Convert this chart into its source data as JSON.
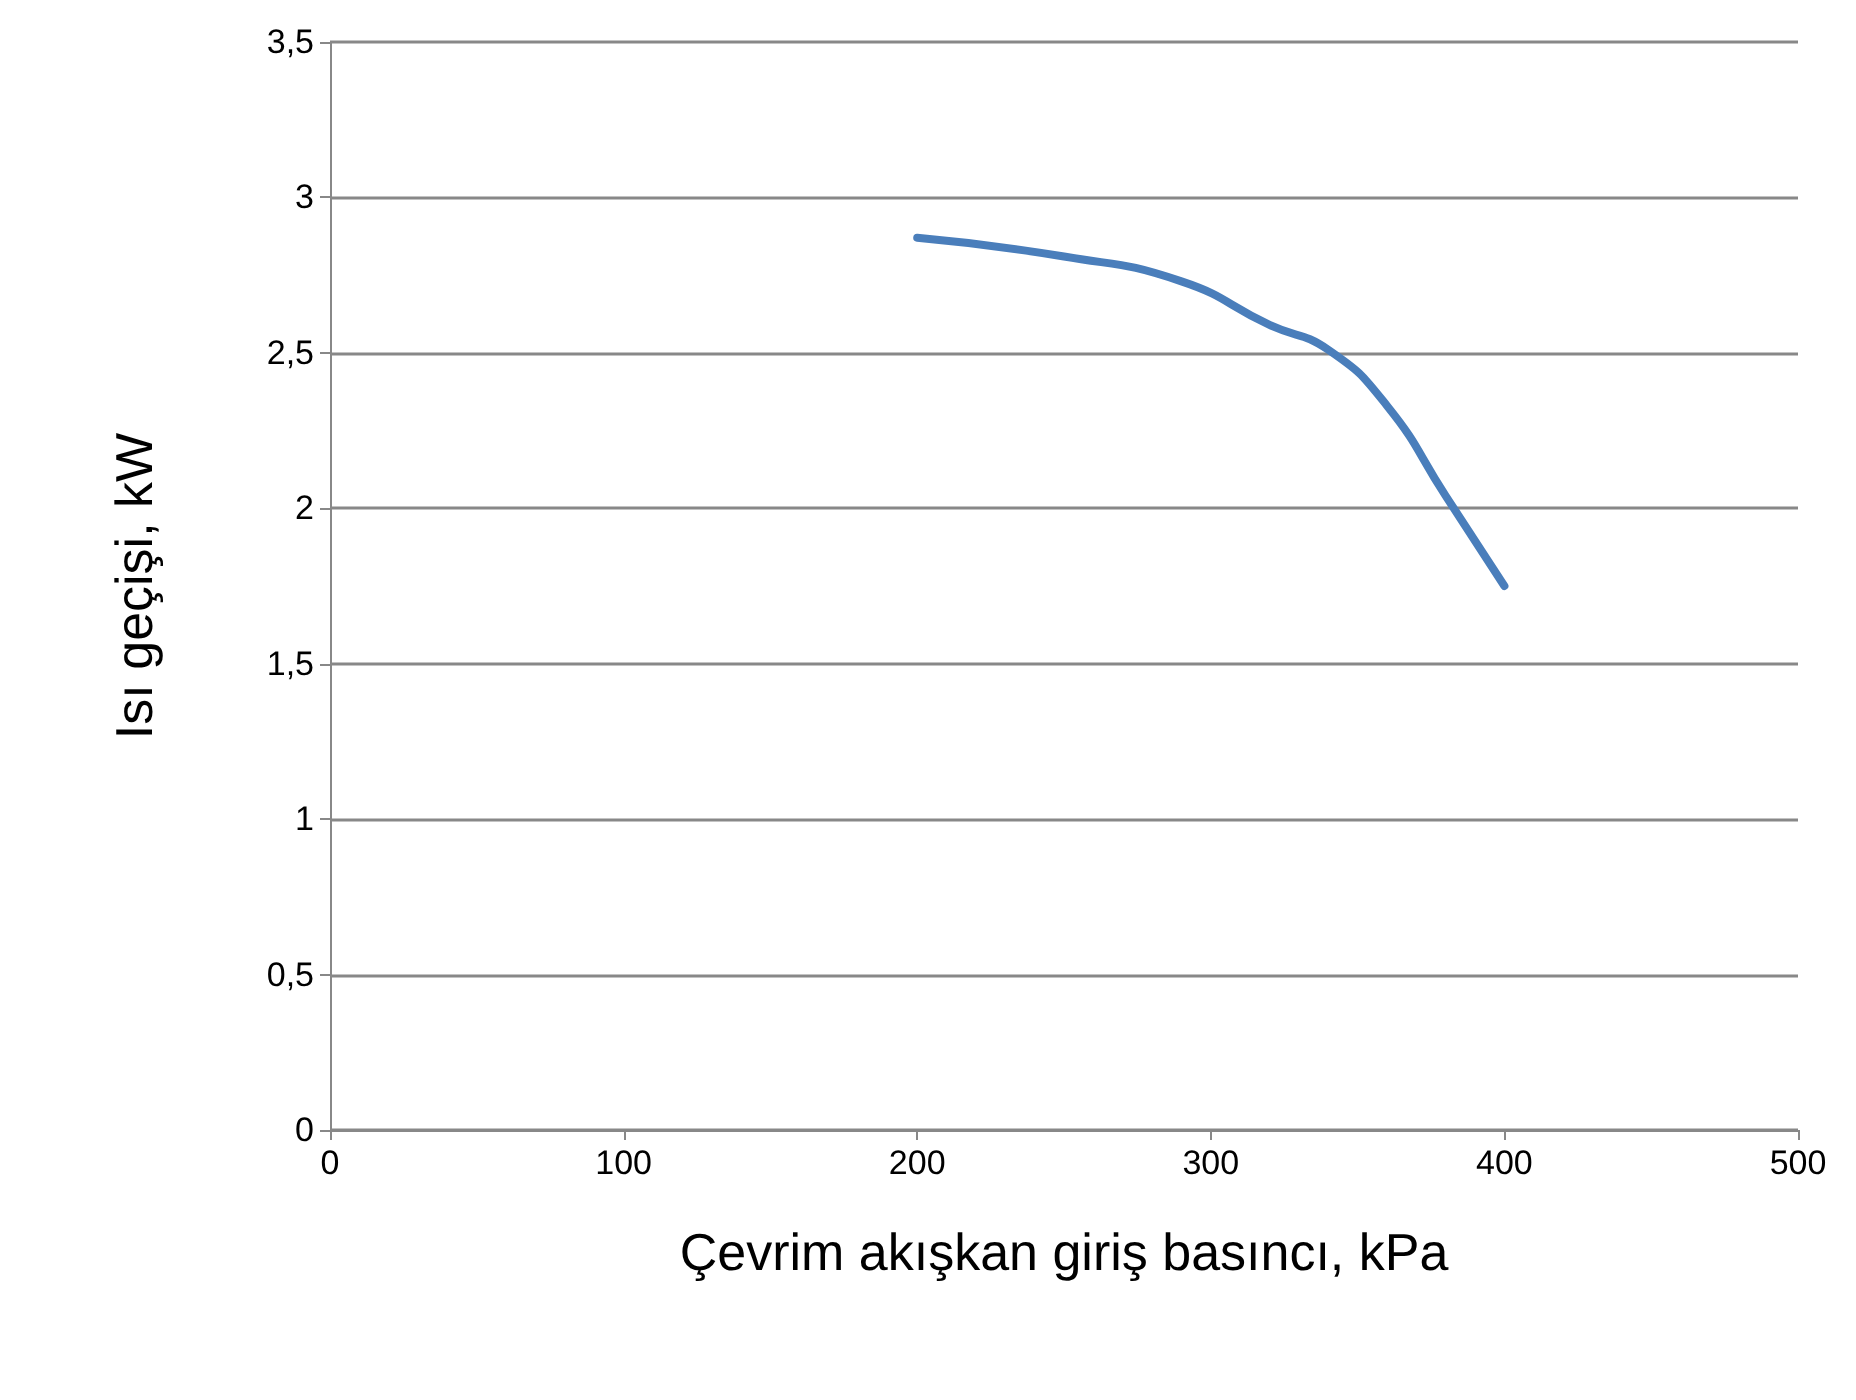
{
  "chart_data": {
    "type": "line",
    "xlabel": "Çevrim akışkan giriş basıncı, kPa",
    "ylabel": "Isı geçişi, kW",
    "x": [
      200,
      250,
      290,
      320,
      340,
      360,
      380,
      400
    ],
    "series": [
      {
        "color": "#4a7ebb",
        "values": [
          2.87,
          2.81,
          2.73,
          2.59,
          2.51,
          2.33,
          2.04,
          1.75
        ]
      }
    ],
    "xlim": [
      0,
      500
    ],
    "xticks": [
      0,
      100,
      200,
      300,
      400,
      500
    ],
    "ylim": [
      0,
      3.5
    ],
    "yticks": [
      0,
      {
        "value": 0.5,
        "label": "0,5"
      },
      1,
      {
        "value": 1.5,
        "label": "1,5"
      },
      2,
      {
        "value": 2.5,
        "label": "2,5"
      },
      3,
      {
        "value": 3.5,
        "label": "3,5"
      }
    ],
    "grid": "y",
    "marker": "none",
    "line_style": "solid"
  }
}
